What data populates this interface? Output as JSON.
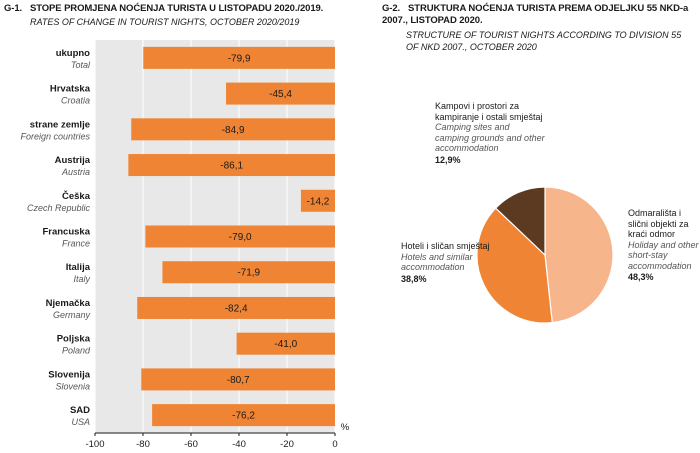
{
  "chart_data": [
    {
      "type": "bar",
      "number": "G-1.",
      "title": "STOPE PROMJENA NOĆENJA TURISTA U LISTOPADU 2020./2019.",
      "subtitle": "RATES OF CHANGE IN TOURIST NIGHTS, OCTOBER 2020/2019",
      "categories": [
        {
          "hr": "ukupno",
          "en": "Total"
        },
        {
          "hr": "Hrvatska",
          "en": "Croatia"
        },
        {
          "hr": "strane zemlje",
          "en": "Foreign countries"
        },
        {
          "hr": "Austrija",
          "en": "Austria"
        },
        {
          "hr": "Češka",
          "en": "Czech Republic"
        },
        {
          "hr": "Francuska",
          "en": "France"
        },
        {
          "hr": "Italija",
          "en": "Italy"
        },
        {
          "hr": "Njemačka",
          "en": "Germany"
        },
        {
          "hr": "Poljska",
          "en": "Poland"
        },
        {
          "hr": "Slovenija",
          "en": "Slovenia"
        },
        {
          "hr": "SAD",
          "en": "USA"
        }
      ],
      "values": [
        -79.9,
        -45.4,
        -84.9,
        -86.1,
        -14.2,
        -79.0,
        -71.9,
        -82.4,
        -41.0,
        -80.7,
        -76.2
      ],
      "value_labels": [
        "-79,9",
        "-45,4",
        "-84,9",
        "-86,1",
        "-14,2",
        "-79,0",
        "-71,9",
        "-82,4",
        "-41,0",
        "-80,7",
        "-76,2"
      ],
      "xlim": [
        -100,
        0
      ],
      "xticks": [
        -100,
        -80,
        -60,
        -40,
        -20,
        0
      ],
      "xunit": "%",
      "grid": true,
      "bar_color": "#EE8434"
    },
    {
      "type": "pie",
      "number": "G-2.",
      "title": "STRUKTURA NOĆENJA TURISTA PREMA ODJELJKU 55 NKD-a 2007., LISTOPAD 2020.",
      "subtitle": "STRUCTURE OF TOURIST NIGHTS ACCORDING TO DIVISION 55 OF NKD 2007., OCTOBER 2020",
      "slices": [
        {
          "hr": "Odmarališta i slični objekti za kraći odmor",
          "en": "Holiday and other short-stay accommodation",
          "value": 48.3,
          "label": "48,3%",
          "color": "#F7B58C"
        },
        {
          "hr": "Hoteli i sličan smještaj",
          "en": "Hotels and similar accommodation",
          "value": 38.8,
          "label": "38,8%",
          "color": "#EE8434"
        },
        {
          "hr": "Kampovi i prostori za kampiranje i ostali smještaj",
          "en": "Camping sites and camping grounds and other accommodation",
          "value": 12.9,
          "label": "12,9%",
          "color": "#5C3A21"
        }
      ]
    }
  ]
}
